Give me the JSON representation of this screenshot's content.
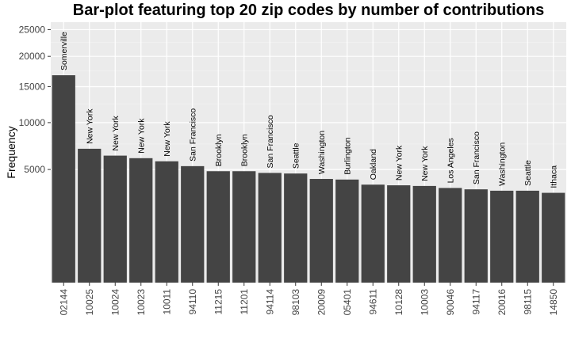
{
  "chart_data": {
    "type": "bar",
    "title": "Bar-plot featuring top 20 zip codes by number of contributions",
    "xlabel": "",
    "ylabel": "Frequency",
    "y_scale": "sqrt",
    "ylim": [
      0,
      26500
    ],
    "y_ticks": [
      5000,
      10000,
      15000,
      20000,
      25000
    ],
    "grid": true,
    "legend": "none",
    "colors": {
      "bar": "#444444",
      "panel": "#ebebeb",
      "grid_major": "#ffffff"
    },
    "categories": [
      "02144",
      "10025",
      "10024",
      "10023",
      "10011",
      "94110",
      "11215",
      "11201",
      "94114",
      "98103",
      "20009",
      "05401",
      "94611",
      "10128",
      "10003",
      "90046",
      "94117",
      "20016",
      "98115",
      "14850"
    ],
    "bar_labels": [
      "Somerville",
      "New York",
      "New York",
      "New York",
      "New York",
      "San Francisco",
      "Brooklyn",
      "Brooklyn",
      "San Francisco",
      "Seattle",
      "Washington",
      "Burlington",
      "Oakland",
      "New York",
      "New York",
      "Los Angeles",
      "San Francisco",
      "Washington",
      "Seattle",
      "Ithaca"
    ],
    "values": [
      16800,
      7000,
      6300,
      6050,
      5750,
      5300,
      4850,
      4850,
      4700,
      4650,
      4200,
      4150,
      3750,
      3700,
      3650,
      3500,
      3400,
      3300,
      3300,
      3150
    ]
  }
}
